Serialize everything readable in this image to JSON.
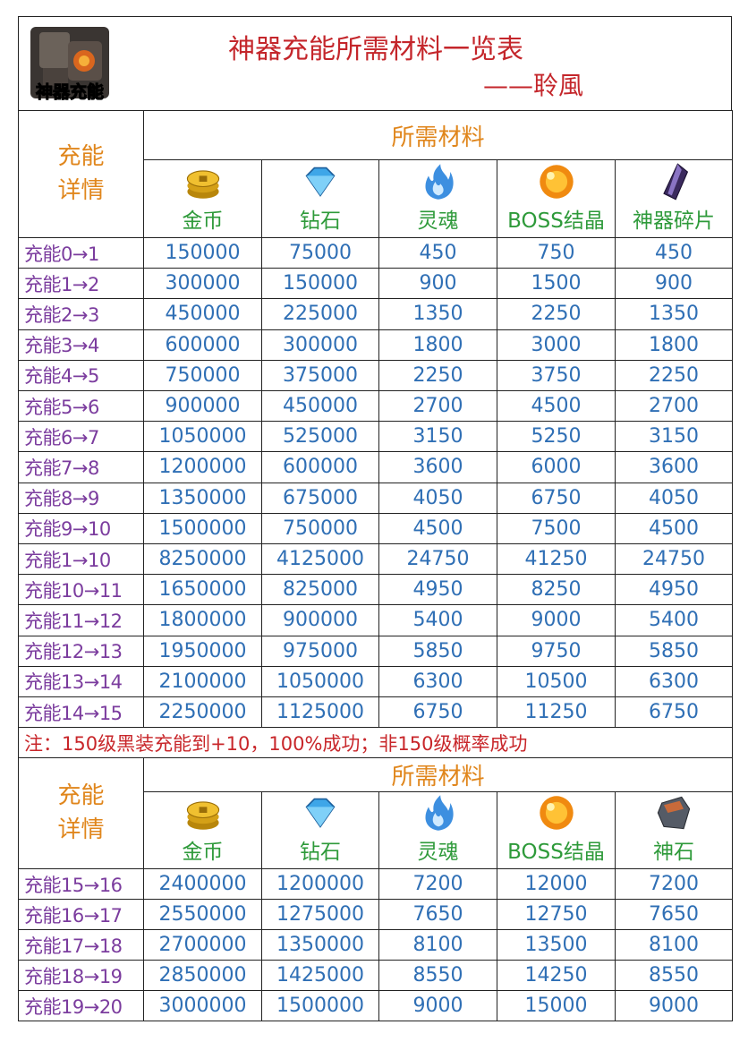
{
  "header": {
    "badge": "神器充能",
    "title": "神器充能所需材料一览表",
    "author": "——聆風"
  },
  "sections": [
    {
      "corner": "充能详情",
      "group": "所需材料",
      "materials": [
        "金币",
        "钻石",
        "灵魂",
        "BOSS结晶",
        "神器碎片"
      ],
      "rows": [
        {
          "label": "充能0→1",
          "values": [
            150000,
            75000,
            450,
            750,
            450
          ]
        },
        {
          "label": "充能1→2",
          "values": [
            300000,
            150000,
            900,
            1500,
            900
          ]
        },
        {
          "label": "充能2→3",
          "values": [
            450000,
            225000,
            1350,
            2250,
            1350
          ]
        },
        {
          "label": "充能3→4",
          "values": [
            600000,
            300000,
            1800,
            3000,
            1800
          ]
        },
        {
          "label": "充能4→5",
          "values": [
            750000,
            375000,
            2250,
            3750,
            2250
          ]
        },
        {
          "label": "充能5→6",
          "values": [
            900000,
            450000,
            2700,
            4500,
            2700
          ]
        },
        {
          "label": "充能6→7",
          "values": [
            1050000,
            525000,
            3150,
            5250,
            3150
          ]
        },
        {
          "label": "充能7→8",
          "values": [
            1200000,
            600000,
            3600,
            6000,
            3600
          ]
        },
        {
          "label": "充能8→9",
          "values": [
            1350000,
            675000,
            4050,
            6750,
            4050
          ]
        },
        {
          "label": "充能9→10",
          "values": [
            1500000,
            750000,
            4500,
            7500,
            4500
          ]
        },
        {
          "label": "充能1→10",
          "values": [
            8250000,
            4125000,
            24750,
            41250,
            24750
          ]
        },
        {
          "label": "充能10→11",
          "values": [
            1650000,
            825000,
            4950,
            8250,
            4950
          ]
        },
        {
          "label": "充能11→12",
          "values": [
            1800000,
            900000,
            5400,
            9000,
            5400
          ]
        },
        {
          "label": "充能12→13",
          "values": [
            1950000,
            975000,
            5850,
            9750,
            5850
          ]
        },
        {
          "label": "充能13→14",
          "values": [
            2100000,
            1050000,
            6300,
            10500,
            6300
          ]
        },
        {
          "label": "充能14→15",
          "values": [
            2250000,
            1125000,
            6750,
            11250,
            6750
          ]
        }
      ]
    },
    {
      "corner": "充能详情",
      "group": "所需材料",
      "materials": [
        "金币",
        "钻石",
        "灵魂",
        "BOSS结晶",
        "神石"
      ],
      "rows": [
        {
          "label": "充能15→16",
          "values": [
            2400000,
            1200000,
            7200,
            12000,
            7200
          ]
        },
        {
          "label": "充能16→17",
          "values": [
            2550000,
            1275000,
            7650,
            12750,
            7650
          ]
        },
        {
          "label": "充能17→18",
          "values": [
            2700000,
            1350000,
            8100,
            13500,
            8100
          ]
        },
        {
          "label": "充能18→19",
          "values": [
            2850000,
            1425000,
            8550,
            14250,
            8550
          ]
        },
        {
          "label": "充能19→20",
          "values": [
            3000000,
            1500000,
            9000,
            15000,
            9000
          ]
        }
      ]
    }
  ],
  "note": "注：150级黑装充能到+10，100%成功；非150级概率成功"
}
